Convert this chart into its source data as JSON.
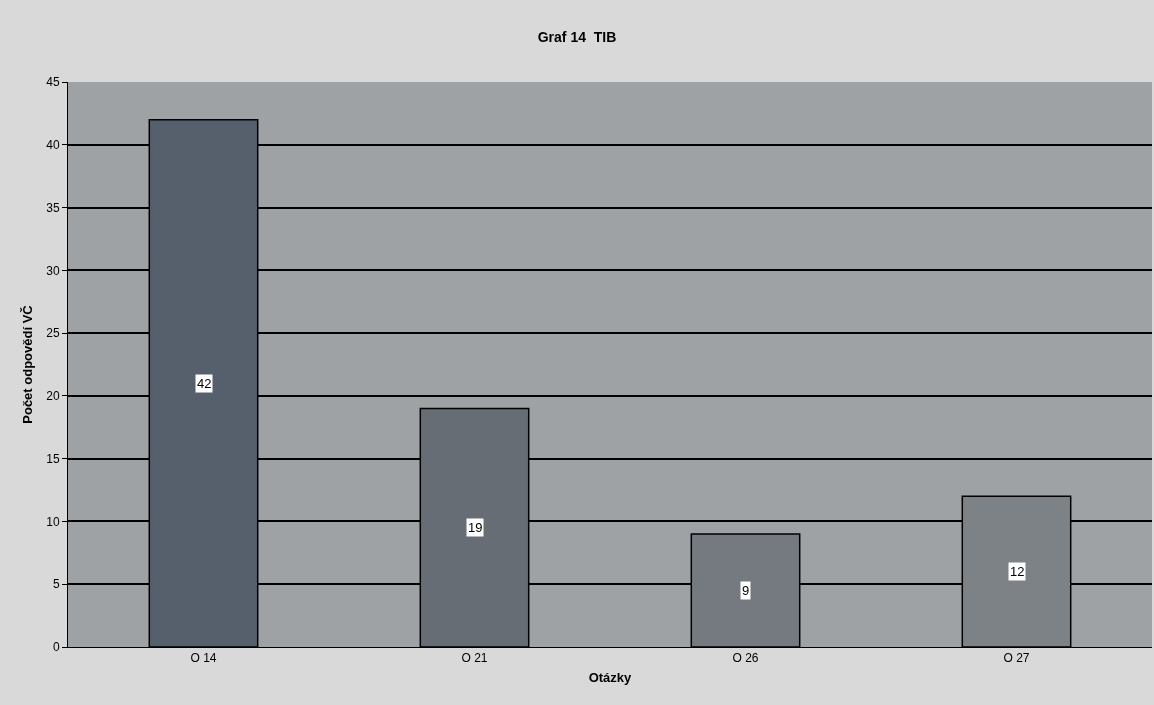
{
  "chart_data": {
    "type": "bar",
    "title": "Graf 14  TIB",
    "xlabel": "Otázky",
    "ylabel": "Počet odpovědí VČ",
    "categories": [
      "O 14",
      "O 21",
      "O 26",
      "O 27"
    ],
    "values": [
      42,
      19,
      9,
      12
    ],
    "colors": [
      "#56606c",
      "#676d75",
      "#757a80",
      "#7d8287"
    ],
    "ylim": [
      0,
      45
    ],
    "yticks": [
      0,
      5,
      10,
      15,
      20,
      25,
      30,
      35,
      40,
      45
    ],
    "grid": "y",
    "data_labels": true
  }
}
